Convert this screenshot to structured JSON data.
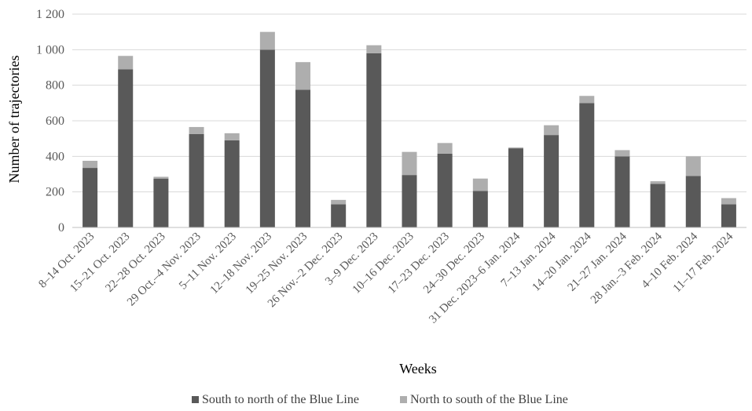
{
  "chart_data": {
    "type": "bar",
    "stacked": true,
    "title": "",
    "xlabel": "Weeks",
    "ylabel": "Number of trajectories",
    "ylim": [
      0,
      1200
    ],
    "yticks": [
      0,
      200,
      400,
      600,
      800,
      1000,
      1200
    ],
    "ytick_labels": [
      "0",
      "200",
      "400",
      "600",
      "800",
      "1 000",
      "1 200"
    ],
    "grid": true,
    "legend_position": "bottom",
    "categories": [
      "8–14 Oct. 2023",
      "15–21 Oct. 2023",
      "22–28 Oct. 2023",
      "29 Oct.–4 Nov. 2023",
      "5–11 Nov. 2023",
      "12–18 Nov. 2023",
      "19–25 Nov. 2023",
      "26 Nov.–2 Dec. 2023",
      "3–9 Dec. 2023",
      "10–16 Dec. 2023",
      "17–23 Dec. 2023",
      "24–30 Dec. 2023",
      "31 Dec. 2023–6 Jan. 2024",
      "7–13 Jan. 2024",
      "14–20 Jan. 2024",
      "21–27 Jan. 2024",
      "28 Jan.–3 Feb. 2024",
      "4–10 Feb. 2024",
      "11–17 Feb. 2024"
    ],
    "series": [
      {
        "name": "South to north of the Blue Line",
        "color": "#595959",
        "values": [
          335,
          890,
          275,
          525,
          490,
          1000,
          775,
          130,
          980,
          295,
          415,
          205,
          445,
          520,
          700,
          400,
          245,
          290,
          130
        ]
      },
      {
        "name": "North to south of the Blue Line",
        "color": "#aeaeae",
        "values": [
          40,
          75,
          10,
          40,
          40,
          100,
          155,
          25,
          45,
          130,
          60,
          70,
          5,
          55,
          40,
          35,
          15,
          110,
          35
        ]
      }
    ]
  }
}
